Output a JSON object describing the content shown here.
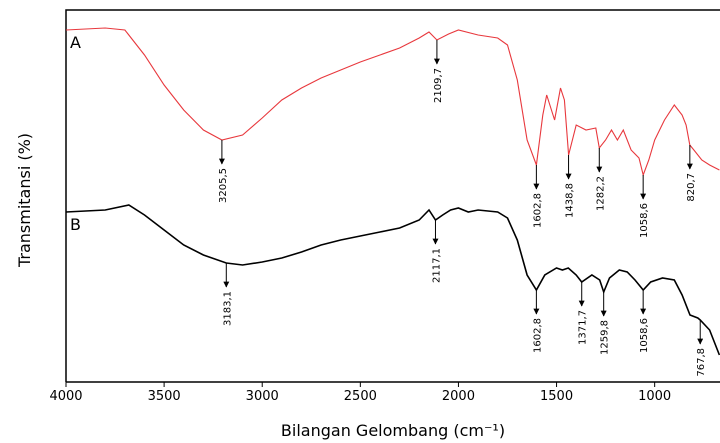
{
  "chart_data": {
    "type": "line",
    "x_label": "Bilangan Gelombang (cm⁻¹)",
    "y_label": "Transmitansi (%)",
    "xlim": [
      4000,
      667
    ],
    "ylim": [
      0,
      372
    ],
    "xticks": [
      4000,
      3500,
      3000,
      2500,
      2000,
      1500,
      1000
    ],
    "series": [
      {
        "name": "A",
        "color": "#e8383d",
        "x": [
          4000,
          3800,
          3700,
          3600,
          3500,
          3400,
          3300,
          3205.5,
          3100,
          3000,
          2900,
          2800,
          2700,
          2600,
          2500,
          2400,
          2300,
          2200,
          2150,
          2109.7,
          2050,
          2000,
          1900,
          1800,
          1750,
          1700,
          1650,
          1602.8,
          1570,
          1550,
          1510,
          1480,
          1460,
          1438.8,
          1400,
          1350,
          1300,
          1282.2,
          1250,
          1220,
          1190,
          1160,
          1120,
          1080,
          1058.6,
          1030,
          1000,
          950,
          900,
          860,
          840,
          820.7,
          800,
          760,
          720,
          670
        ],
        "values": [
          352,
          354,
          352,
          327,
          297,
          272,
          252,
          242,
          247,
          264,
          282,
          294,
          304,
          312,
          320,
          327,
          334,
          344,
          350,
          342,
          348,
          352,
          347,
          344,
          337,
          302,
          242,
          217,
          267,
          287,
          262,
          294,
          282,
          227,
          257,
          252,
          254,
          234,
          242,
          252,
          242,
          252,
          232,
          224,
          207,
          222,
          242,
          262,
          277,
          267,
          257,
          237,
          232,
          222,
          217,
          212
        ]
      },
      {
        "name": "B",
        "color": "#000000",
        "x": [
          4000,
          3800,
          3680,
          3600,
          3500,
          3400,
          3300,
          3183.1,
          3100,
          3000,
          2900,
          2800,
          2700,
          2600,
          2500,
          2400,
          2300,
          2200,
          2150,
          2117.1,
          2080,
          2040,
          2000,
          1950,
          1900,
          1800,
          1750,
          1700,
          1650,
          1602.8,
          1560,
          1500,
          1470,
          1440,
          1400,
          1371.7,
          1320,
          1280,
          1259.8,
          1230,
          1180,
          1140,
          1100,
          1058.6,
          1020,
          960,
          900,
          860,
          820,
          780,
          767.8,
          720,
          670
        ],
        "values": [
          170,
          172,
          177,
          167,
          152,
          137,
          127,
          119,
          117,
          120,
          124,
          130,
          137,
          142,
          146,
          150,
          154,
          162,
          172,
          162,
          167,
          172,
          174,
          170,
          172,
          170,
          164,
          142,
          107,
          92,
          107,
          114,
          112,
          114,
          107,
          100,
          107,
          102,
          90,
          104,
          112,
          110,
          102,
          92,
          100,
          104,
          102,
          87,
          67,
          64,
          62,
          52,
          27
        ]
      }
    ],
    "annotations": [
      {
        "text": "3205,5",
        "x": 3205.5,
        "y": 242
      },
      {
        "text": "2109,7",
        "x": 2109.7,
        "y": 342
      },
      {
        "text": "1602,8",
        "x": 1602.8,
        "y": 217
      },
      {
        "text": "1438,8",
        "x": 1438.8,
        "y": 227
      },
      {
        "text": "1282,2",
        "x": 1282.2,
        "y": 234
      },
      {
        "text": "1058,6",
        "x": 1058.6,
        "y": 207
      },
      {
        "text": "820,7",
        "x": 820.7,
        "y": 237
      },
      {
        "text": "3183,1",
        "x": 3183.1,
        "y": 119
      },
      {
        "text": "2117,1",
        "x": 2117.1,
        "y": 162
      },
      {
        "text": "1602,8",
        "x": 1602.8,
        "y": 92
      },
      {
        "text": "1371,7",
        "x": 1371.7,
        "y": 100
      },
      {
        "text": "1259,8",
        "x": 1259.8,
        "y": 90
      },
      {
        "text": "1058,6",
        "x": 1058.6,
        "y": 92
      },
      {
        "text": "767,8",
        "x": 767.8,
        "y": 62
      }
    ]
  }
}
